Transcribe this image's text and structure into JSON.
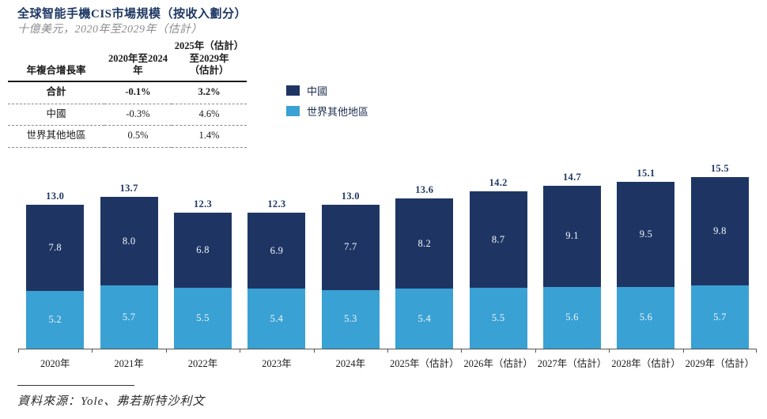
{
  "header": {
    "title": "全球智能手機CIS市場規模（按收入劃分）",
    "subtitle": "十億美元，2020年至2029年（估計）"
  },
  "table": {
    "col1_header": "年複合增長率",
    "col2_header": "2020年至2024年",
    "col3_header_lines": [
      "2025年（估計）",
      "至2029年",
      "（估計）"
    ],
    "rows": [
      {
        "label": "合計",
        "cagr_2020_2024": "-0.1%",
        "cagr_2025_2029": "3.2%"
      },
      {
        "label": "中國",
        "cagr_2020_2024": "-0.3%",
        "cagr_2025_2029": "4.6%"
      },
      {
        "label": "世界其他地區",
        "cagr_2020_2024": "0.5%",
        "cagr_2025_2029": "1.4%"
      }
    ]
  },
  "legend": {
    "items": [
      {
        "key": "china",
        "label": "中國",
        "color": "#1e3564"
      },
      {
        "key": "rest-of-world",
        "label": "世界其他地區",
        "color": "#39a1d4"
      }
    ]
  },
  "colors": {
    "china": "#1e3564",
    "rest_of_world": "#39a1d4",
    "title_navy": "#1f3864"
  },
  "chart_data": {
    "type": "bar",
    "stacked": true,
    "title": "全球智能手機CIS市場規模（按收入劃分）",
    "unit": "十億美元",
    "categories": [
      "2020年",
      "2021年",
      "2022年",
      "2023年",
      "2024年",
      "2025年（估計）",
      "2026年（估計）",
      "2027年（估計）",
      "2028年（估計）",
      "2029年（估計）"
    ],
    "series": [
      {
        "key": "china",
        "name": "中國",
        "color": "#1e3564",
        "values": [
          7.8,
          8.0,
          6.8,
          6.9,
          7.7,
          8.2,
          8.7,
          9.1,
          9.5,
          9.8
        ]
      },
      {
        "key": "rest-of-world",
        "name": "世界其他地區",
        "color": "#39a1d4",
        "values": [
          5.2,
          5.7,
          5.5,
          5.4,
          5.3,
          5.4,
          5.5,
          5.6,
          5.6,
          5.7
        ]
      }
    ],
    "totals": [
      13.0,
      13.7,
      12.3,
      12.3,
      13.0,
      13.6,
      14.2,
      14.7,
      15.1,
      15.5
    ],
    "ylim": [
      0,
      16
    ],
    "grid": false,
    "legend_position": "top-left-of-plot"
  },
  "source": {
    "text": "資料來源：Yole、弗若斯特沙利文"
  }
}
